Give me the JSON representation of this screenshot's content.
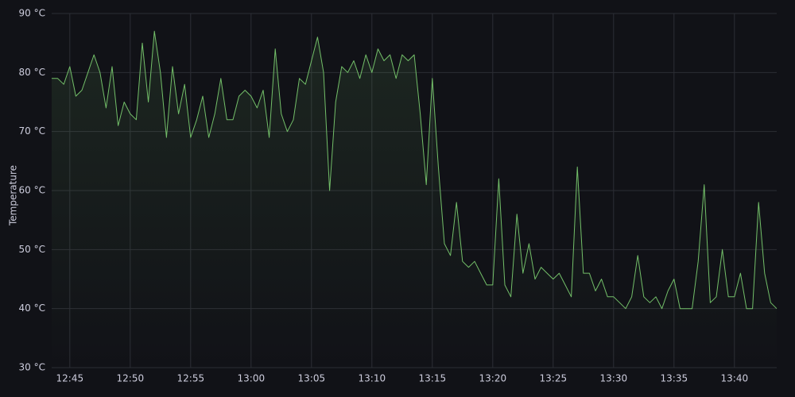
{
  "chart_data": {
    "type": "line",
    "ylabel": "Temperature",
    "color": "#73bf69",
    "grid": true,
    "x": [
      "12:43:30",
      "12:44:00",
      "12:44:30",
      "12:45:00",
      "12:45:30",
      "12:46:00",
      "12:46:30",
      "12:47:00",
      "12:47:30",
      "12:48:00",
      "12:48:30",
      "12:49:00",
      "12:49:30",
      "12:50:00",
      "12:50:30",
      "12:51:00",
      "12:51:30",
      "12:52:00",
      "12:52:30",
      "12:53:00",
      "12:53:30",
      "12:54:00",
      "12:54:30",
      "12:55:00",
      "12:55:30",
      "12:56:00",
      "12:56:30",
      "12:57:00",
      "12:57:30",
      "12:58:00",
      "12:58:30",
      "12:59:00",
      "12:59:30",
      "13:00:00",
      "13:00:30",
      "13:01:00",
      "13:01:30",
      "13:02:00",
      "13:02:30",
      "13:03:00",
      "13:03:30",
      "13:04:00",
      "13:04:30",
      "13:05:00",
      "13:05:30",
      "13:06:00",
      "13:06:30",
      "13:07:00",
      "13:07:30",
      "13:08:00",
      "13:08:30",
      "13:09:00",
      "13:09:30",
      "13:10:00",
      "13:10:30",
      "13:11:00",
      "13:11:30",
      "13:12:00",
      "13:12:30",
      "13:13:00",
      "13:13:30",
      "13:14:00",
      "13:14:30",
      "13:15:00",
      "13:15:30",
      "13:16:00",
      "13:16:30",
      "13:17:00",
      "13:17:30",
      "13:18:00",
      "13:18:30",
      "13:19:00",
      "13:19:30",
      "13:20:00",
      "13:20:30",
      "13:21:00",
      "13:21:30",
      "13:22:00",
      "13:22:30",
      "13:23:00",
      "13:23:30",
      "13:24:00",
      "13:24:30",
      "13:25:00",
      "13:25:30",
      "13:26:00",
      "13:26:30",
      "13:27:00",
      "13:27:30",
      "13:28:00",
      "13:28:30",
      "13:29:00",
      "13:29:30",
      "13:30:00",
      "13:30:30",
      "13:31:00",
      "13:31:30",
      "13:32:00",
      "13:32:30",
      "13:33:00",
      "13:33:30",
      "13:34:00",
      "13:34:30",
      "13:35:00",
      "13:35:30",
      "13:36:00",
      "13:36:30",
      "13:37:00",
      "13:37:30",
      "13:38:00",
      "13:38:30",
      "13:39:00",
      "13:39:30",
      "13:40:00",
      "13:40:30",
      "13:41:00",
      "13:41:30",
      "13:42:00",
      "13:42:30",
      "13:43:00",
      "13:43:30"
    ],
    "values": [
      79,
      79,
      78,
      81,
      76,
      77,
      80,
      83,
      80,
      74,
      81,
      71,
      75,
      73,
      72,
      85,
      75,
      87,
      80,
      69,
      81,
      73,
      78,
      69,
      72,
      76,
      69,
      73,
      79,
      72,
      72,
      76,
      77,
      76,
      74,
      77,
      69,
      84,
      73,
      70,
      72,
      79,
      78,
      82,
      86,
      80,
      60,
      75,
      81,
      80,
      82,
      79,
      83,
      80,
      84,
      82,
      83,
      79,
      83,
      82,
      83,
      73,
      61,
      79,
      64,
      51,
      49,
      58,
      48,
      47,
      48,
      46,
      44,
      44,
      62,
      44,
      42,
      56,
      46,
      51,
      45,
      47,
      46,
      45,
      46,
      44,
      42,
      64,
      46,
      46,
      43,
      45,
      42,
      42,
      41,
      40,
      42,
      49,
      42,
      41,
      42,
      40,
      43,
      45,
      40,
      40,
      40,
      48,
      61,
      41,
      42,
      50,
      42,
      42,
      46,
      40,
      40,
      58,
      46,
      41,
      40
    ],
    "xlim": [
      "12:43:30",
      "13:43:30"
    ],
    "xticks": [
      "12:45",
      "12:50",
      "12:55",
      "13:00",
      "13:05",
      "13:10",
      "13:15",
      "13:20",
      "13:25",
      "13:30",
      "13:35",
      "13:40"
    ],
    "ylim": [
      30,
      90
    ],
    "yticks": [
      {
        "value": 30,
        "label": "30 °C"
      },
      {
        "value": 40,
        "label": "40 °C"
      },
      {
        "value": 50,
        "label": "50 °C"
      },
      {
        "value": 60,
        "label": "60 °C"
      },
      {
        "value": 70,
        "label": "70 °C"
      },
      {
        "value": 80,
        "label": "80 °C"
      },
      {
        "value": 90,
        "label": "90 °C"
      }
    ]
  }
}
